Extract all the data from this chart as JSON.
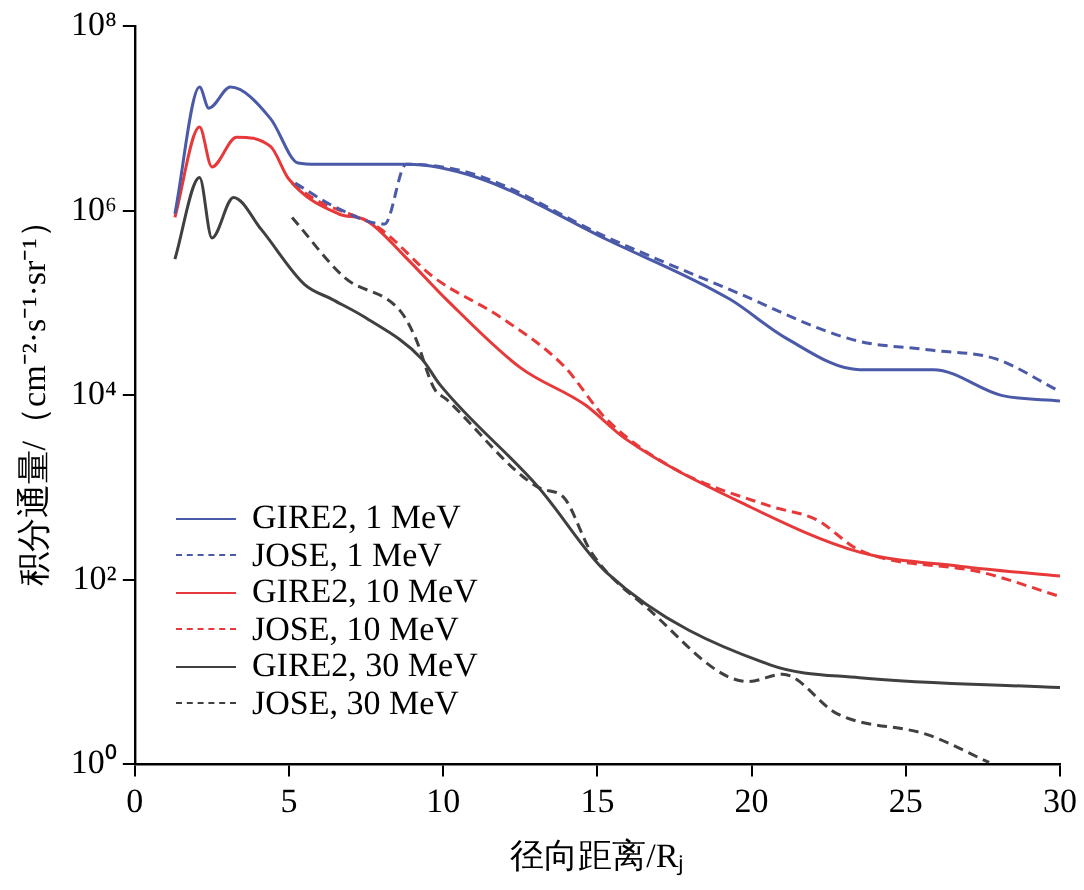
{
  "chart_data": {
    "type": "line",
    "xlabel": "径向距离/Rⱼ",
    "ylabel": "积分通量/（cm⁻²·s⁻¹·sr⁻¹）",
    "log": "y",
    "grid": false,
    "legend": "bottom left",
    "marker": "none",
    "xlim": [
      0,
      30
    ],
    "xticks": [
      0,
      5,
      10,
      15,
      20,
      25,
      30
    ],
    "ylim": [
      1,
      100000000
    ],
    "yticks": [
      {
        "value": 1,
        "label": "10⁰"
      },
      {
        "value": 100,
        "label": "10²"
      },
      {
        "value": 10000,
        "label": "10⁴"
      },
      {
        "value": 1000000,
        "label": "10⁶"
      },
      {
        "value": 100000000,
        "label": "10⁸"
      }
    ],
    "series": [
      {
        "name": "GIRE2, 1 MeV",
        "color": "#4a5aa8",
        "line_style": "solid",
        "x": [
          1.3,
          2.1,
          2.4,
          3.1,
          4.4,
          5.3,
          5.9,
          8.8,
          11.1,
          15.3,
          19.3,
          21.1,
          23.5,
          25.9,
          28.1,
          30
        ],
        "values": [
          930000,
          22000000,
          13000000,
          22000000,
          10000000,
          3300000,
          3200000,
          3200000,
          2300000,
          490000,
          110000,
          42000,
          19000,
          19000,
          10000,
          8700
        ]
      },
      {
        "name": "JOSE, 1 MeV",
        "color": "#4a5aa8",
        "line_style": "dashed",
        "x": [
          5.2,
          6.5,
          8.1,
          8.8,
          11,
          15.3,
          19.3,
          23.3,
          25.8,
          27.9,
          30
        ],
        "values": [
          2000000,
          1100000,
          720000,
          3200000,
          2500000,
          520000,
          140000,
          40000,
          31000,
          25000,
          11000
        ]
      },
      {
        "name": "GIRE2, 10 MeV",
        "color": "#e8393a",
        "line_style": "solid",
        "x": [
          1.3,
          2.1,
          2.5,
          3.3,
          4.4,
          5,
          6.6,
          7.5,
          8.8,
          10.1,
          12.5,
          14.6,
          15.9,
          19.9,
          23.5,
          26.8,
          30
        ],
        "values": [
          850000,
          8100000,
          3000000,
          6300000,
          5000000,
          2200000,
          930000,
          790000,
          310000,
          110000,
          20000,
          7900,
          3400,
          630,
          200,
          140,
          110
        ]
      },
      {
        "name": "JOSE, 10 MeV",
        "color": "#e8393a",
        "line_style": "dashed",
        "x": [
          5.1,
          5.9,
          7.9,
          9.7,
          11.9,
          13.9,
          15.3,
          17.5,
          20.6,
          22.1,
          23.5,
          27.5,
          30
        ],
        "values": [
          2000000,
          1300000,
          660000,
          190000,
          69000,
          21000,
          5500,
          1600,
          630,
          450,
          210,
          120,
          66
        ]
      },
      {
        "name": "GIRE2, 30 MeV",
        "color": "#404040",
        "line_style": "solid",
        "x": [
          1.3,
          2.1,
          2.5,
          3.2,
          4.1,
          5.5,
          6.4,
          7.5,
          9.3,
          9.9,
          13.1,
          15.3,
          20.6,
          23.5,
          30
        ],
        "values": [
          300000,
          2300000,
          510000,
          1400000,
          630000,
          160000,
          110000,
          69000,
          25000,
          13000,
          1000,
          120,
          12,
          8.7,
          6.8
        ]
      },
      {
        "name": "JOSE, 30 MeV",
        "color": "#404040",
        "line_style": "dashed",
        "x": [
          5.1,
          6.8,
          8.6,
          9.1,
          9.7,
          10.1,
          13.1,
          13.9,
          14.8,
          16.6,
          19.9,
          21,
          22.8,
          25.7,
          27.7
        ],
        "values": [
          850000,
          190000,
          83000,
          42000,
          12000,
          9100,
          1000,
          790,
          200,
          50,
          7.9,
          9.5,
          3.5,
          2.1,
          1.05
        ]
      }
    ]
  }
}
